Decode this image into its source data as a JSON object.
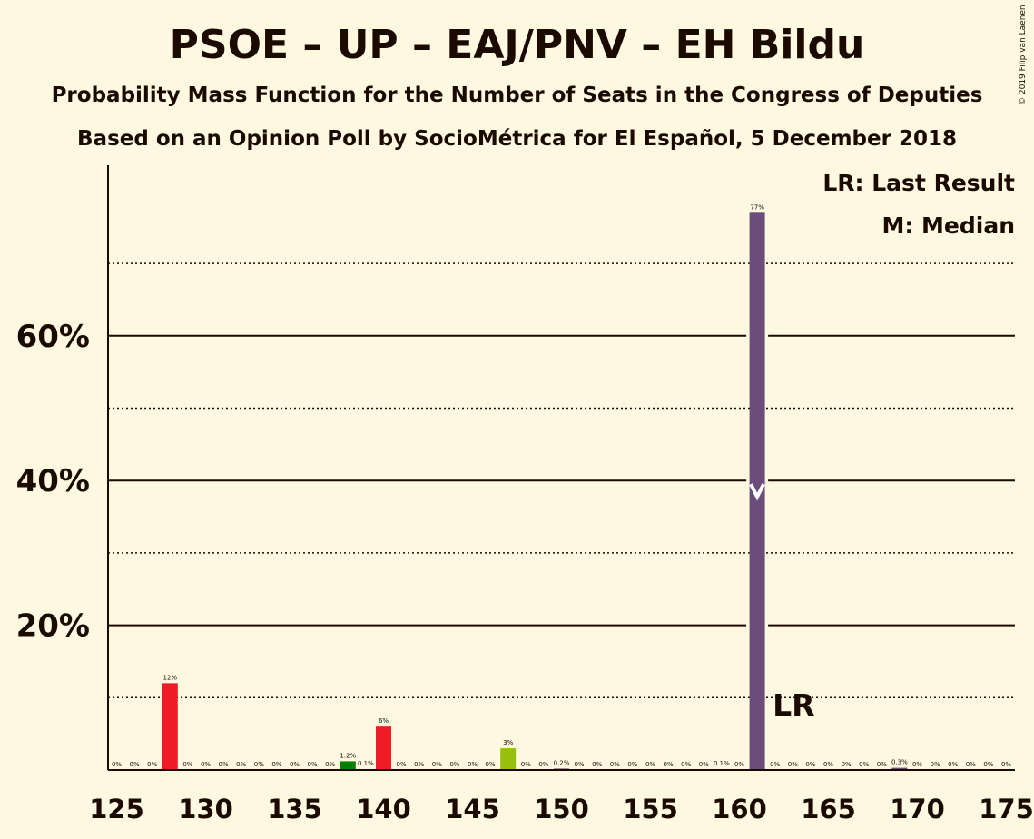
{
  "header": {
    "title": "PSOE – UP – EAJ/PNV – EH Bildu",
    "subtitle": "Probability Mass Function for the Number of Seats in the Congress of Deputies",
    "source": "Based on an Opinion Poll by SocioMétrica for El Español, 5 December 2018",
    "copyright": "© 2019 Filip van Laenen"
  },
  "legend": {
    "last_result": "LR: Last Result",
    "median": "M: Median"
  },
  "chart_data": {
    "type": "bar",
    "xlim": [
      125,
      175
    ],
    "ylim": [
      0,
      80
    ],
    "x_ticks": [
      125,
      130,
      135,
      140,
      145,
      150,
      155,
      160,
      165,
      170,
      175
    ],
    "y_ticks": [
      20,
      40,
      60
    ],
    "y_tick_labels": [
      "20%",
      "40%",
      "60%"
    ],
    "grid_solid": [
      20,
      40,
      60
    ],
    "grid_dotted": [
      10,
      30,
      50,
      70
    ],
    "colors": {
      "psoe": "#ef1c27",
      "up": "#6b4c7b",
      "pnv": "#008000",
      "bildu": "#97c00e",
      "median_bar": "#6b4c7b",
      "text": "#1a0a00"
    },
    "last_result": {
      "seat": 163,
      "label": "LR"
    },
    "median": {
      "seat": 161,
      "value_at": 38
    },
    "bars": [
      {
        "seat": 125,
        "value": 0,
        "label": "0%",
        "color": "#ef1c27"
      },
      {
        "seat": 126,
        "value": 0,
        "label": "0%",
        "color": "#ef1c27"
      },
      {
        "seat": 127,
        "value": 0,
        "label": "0%",
        "color": "#ef1c27"
      },
      {
        "seat": 128,
        "value": 12,
        "label": "12%",
        "color": "#ef1c27"
      },
      {
        "seat": 129,
        "value": 0,
        "label": "0%",
        "color": "#ef1c27"
      },
      {
        "seat": 130,
        "value": 0,
        "label": "0%",
        "color": "#ef1c27"
      },
      {
        "seat": 131,
        "value": 0,
        "label": "0%",
        "color": "#ef1c27"
      },
      {
        "seat": 132,
        "value": 0,
        "label": "0%",
        "color": "#ef1c27"
      },
      {
        "seat": 133,
        "value": 0,
        "label": "0%",
        "color": "#ef1c27"
      },
      {
        "seat": 134,
        "value": 0,
        "label": "0%",
        "color": "#ef1c27"
      },
      {
        "seat": 135,
        "value": 0,
        "label": "0%",
        "color": "#ef1c27"
      },
      {
        "seat": 136,
        "value": 0,
        "label": "0%",
        "color": "#ef1c27"
      },
      {
        "seat": 137,
        "value": 0,
        "label": "0%",
        "color": "#ef1c27"
      },
      {
        "seat": 138,
        "value": 1.2,
        "label": "1.2%",
        "color": "#008000"
      },
      {
        "seat": 139,
        "value": 0.1,
        "label": "0.1%",
        "color": "#ef1c27"
      },
      {
        "seat": 140,
        "value": 6,
        "label": "6%",
        "color": "#ef1c27"
      },
      {
        "seat": 141,
        "value": 0,
        "label": "0%",
        "color": "#ef1c27"
      },
      {
        "seat": 142,
        "value": 0,
        "label": "0%",
        "color": "#ef1c27"
      },
      {
        "seat": 143,
        "value": 0,
        "label": "0%",
        "color": "#ef1c27"
      },
      {
        "seat": 144,
        "value": 0,
        "label": "0%",
        "color": "#ef1c27"
      },
      {
        "seat": 145,
        "value": 0,
        "label": "0%",
        "color": "#ef1c27"
      },
      {
        "seat": 146,
        "value": 0,
        "label": "0%",
        "color": "#ef1c27"
      },
      {
        "seat": 147,
        "value": 3,
        "label": "3%",
        "color": "#97c00e"
      },
      {
        "seat": 148,
        "value": 0,
        "label": "0%",
        "color": "#ef1c27"
      },
      {
        "seat": 149,
        "value": 0,
        "label": "0%",
        "color": "#ef1c27"
      },
      {
        "seat": 150,
        "value": 0.2,
        "label": "0.2%",
        "color": "#6b4c7b"
      },
      {
        "seat": 151,
        "value": 0,
        "label": "0%",
        "color": "#ef1c27"
      },
      {
        "seat": 152,
        "value": 0,
        "label": "0%",
        "color": "#ef1c27"
      },
      {
        "seat": 153,
        "value": 0,
        "label": "0%",
        "color": "#ef1c27"
      },
      {
        "seat": 154,
        "value": 0,
        "label": "0%",
        "color": "#ef1c27"
      },
      {
        "seat": 155,
        "value": 0,
        "label": "0%",
        "color": "#ef1c27"
      },
      {
        "seat": 156,
        "value": 0,
        "label": "0%",
        "color": "#ef1c27"
      },
      {
        "seat": 157,
        "value": 0,
        "label": "0%",
        "color": "#ef1c27"
      },
      {
        "seat": 158,
        "value": 0,
        "label": "0%",
        "color": "#ef1c27"
      },
      {
        "seat": 159,
        "value": 0.1,
        "label": "0.1%",
        "color": "#6b4c7b"
      },
      {
        "seat": 160,
        "value": 0,
        "label": "0%",
        "color": "#6b4c7b"
      },
      {
        "seat": 161,
        "value": 77,
        "label": "77%",
        "color": "#6b4c7b"
      },
      {
        "seat": 162,
        "value": 0,
        "label": "0%",
        "color": "#6b4c7b"
      },
      {
        "seat": 163,
        "value": 0,
        "label": "0%",
        "color": "#6b4c7b"
      },
      {
        "seat": 164,
        "value": 0,
        "label": "0%",
        "color": "#6b4c7b"
      },
      {
        "seat": 165,
        "value": 0,
        "label": "0%",
        "color": "#6b4c7b"
      },
      {
        "seat": 166,
        "value": 0,
        "label": "0%",
        "color": "#6b4c7b"
      },
      {
        "seat": 167,
        "value": 0,
        "label": "0%",
        "color": "#6b4c7b"
      },
      {
        "seat": 168,
        "value": 0,
        "label": "0%",
        "color": "#6b4c7b"
      },
      {
        "seat": 169,
        "value": 0.3,
        "label": "0.3%",
        "color": "#6b4c7b"
      },
      {
        "seat": 170,
        "value": 0,
        "label": "0%",
        "color": "#6b4c7b"
      },
      {
        "seat": 171,
        "value": 0,
        "label": "0%",
        "color": "#6b4c7b"
      },
      {
        "seat": 172,
        "value": 0,
        "label": "0%",
        "color": "#6b4c7b"
      },
      {
        "seat": 173,
        "value": 0,
        "label": "0%",
        "color": "#6b4c7b"
      },
      {
        "seat": 174,
        "value": 0,
        "label": "0%",
        "color": "#6b4c7b"
      },
      {
        "seat": 175,
        "value": 0,
        "label": "0%",
        "color": "#6b4c7b"
      }
    ]
  }
}
